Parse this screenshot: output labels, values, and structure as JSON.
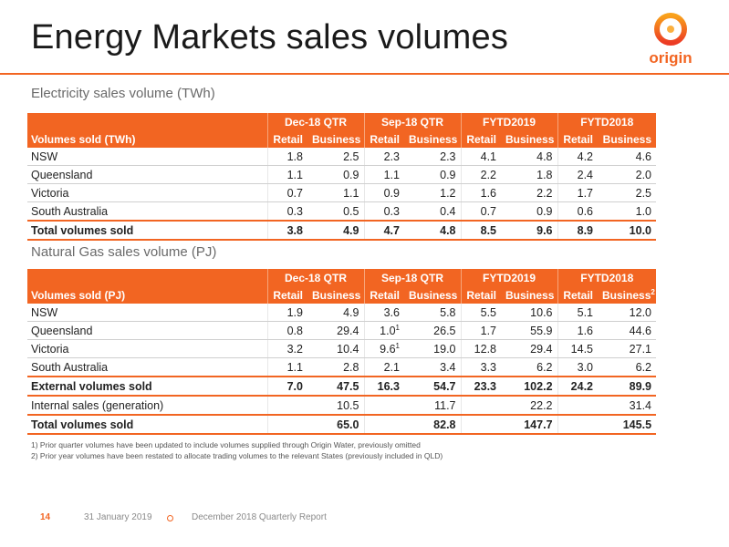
{
  "page": {
    "title": "Energy Markets sales volumes",
    "logo_text": "origin",
    "brand_color": "#f26522"
  },
  "electricity": {
    "section_title": "Electricity sales volume (TWh)",
    "period_headers": [
      "Dec-18 QTR",
      "Sep-18 QTR",
      "FYTD2019",
      "FYTD2018"
    ],
    "row_header": "Volumes sold (TWh)",
    "sub_headers": [
      "Retail",
      "Business",
      "Retail",
      "Business",
      "Retail",
      "Business",
      "Retail",
      "Business"
    ],
    "rows": [
      {
        "label": "NSW",
        "values": [
          "1.8",
          "2.5",
          "2.3",
          "2.3",
          "4.1",
          "4.8",
          "4.2",
          "4.6"
        ]
      },
      {
        "label": "Queensland",
        "values": [
          "1.1",
          "0.9",
          "1.1",
          "0.9",
          "2.2",
          "1.8",
          "2.4",
          "2.0"
        ]
      },
      {
        "label": "Victoria",
        "values": [
          "0.7",
          "1.1",
          "0.9",
          "1.2",
          "1.6",
          "2.2",
          "1.7",
          "2.5"
        ]
      },
      {
        "label": "South Australia",
        "values": [
          "0.3",
          "0.5",
          "0.3",
          "0.4",
          "0.7",
          "0.9",
          "0.6",
          "1.0"
        ]
      }
    ],
    "total": {
      "label": "Total volumes sold",
      "values": [
        "3.8",
        "4.9",
        "4.7",
        "4.8",
        "8.5",
        "9.6",
        "8.9",
        "10.0"
      ]
    }
  },
  "gas": {
    "section_title": "Natural Gas sales volume (PJ)",
    "period_headers": [
      "Dec-18 QTR",
      "Sep-18 QTR",
      "FYTD2019",
      "FYTD2018"
    ],
    "row_header": "Volumes sold (PJ)",
    "sub_headers": [
      "Retail",
      "Business",
      "Retail",
      "Business",
      "Retail",
      "Business",
      "Retail",
      "Business"
    ],
    "last_header_sup": "2",
    "rows": [
      {
        "label": "NSW",
        "values": [
          "1.9",
          "4.9",
          "3.6",
          "5.8",
          "5.5",
          "10.6",
          "5.1",
          "12.0"
        ]
      },
      {
        "label": "Queensland",
        "values": [
          "0.8",
          "29.4",
          "1.0",
          "26.5",
          "1.7",
          "55.9",
          "1.6",
          "44.6"
        ]
      },
      {
        "label": "Victoria",
        "values": [
          "3.2",
          "10.4",
          "9.6",
          "19.0",
          "12.8",
          "29.4",
          "14.5",
          "27.1"
        ]
      },
      {
        "label": "South Australia",
        "values": [
          "1.1",
          "2.8",
          "2.1",
          "3.4",
          "3.3",
          "6.2",
          "3.0",
          "6.2"
        ]
      }
    ],
    "qld_sep_sup": "1",
    "vic_sep_sup": "1",
    "external": {
      "label": "External volumes sold",
      "values": [
        "7.0",
        "47.5",
        "16.3",
        "54.7",
        "23.3",
        "102.2",
        "24.2",
        "89.9"
      ]
    },
    "internal": {
      "label": "Internal sales (generation)",
      "values": [
        "10.5",
        "11.7",
        "22.2",
        "31.4"
      ]
    },
    "total": {
      "label": "Total volumes sold",
      "values": [
        "65.0",
        "82.8",
        "147.7",
        "145.5"
      ]
    }
  },
  "footnotes": [
    "1) Prior quarter volumes have been updated to include volumes supplied through Origin Water, previously omitted",
    "2) Prior year volumes have been restated to allocate trading volumes to the relevant States (previously included in QLD)"
  ],
  "footer": {
    "page_number": "14",
    "date": "31 January 2019",
    "report": "December 2018 Quarterly Report"
  }
}
